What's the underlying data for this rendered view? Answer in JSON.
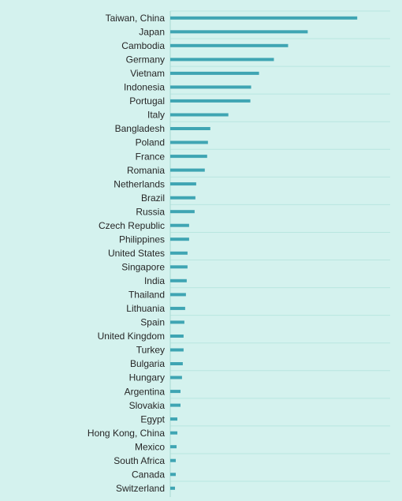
{
  "chart_data": {
    "type": "bar",
    "orientation": "horizontal",
    "categories": [
      "Taiwan, China",
      "Japan",
      "Cambodia",
      "Germany",
      "Vietnam",
      "Indonesia",
      "Portugal",
      "Italy",
      "Bangladesh",
      "Poland",
      "France",
      "Romania",
      "Netherlands",
      "Brazil",
      "Russia",
      "Czech Republic",
      "Philippines",
      "United States",
      "Singapore",
      "India",
      "Thailand",
      "Lithuania",
      "Spain",
      "United Kingdom",
      "Turkey",
      "Bulgaria",
      "Hungary",
      "Argentina",
      "Slovakia",
      "Egypt",
      "Hong Kong, China",
      "Mexico",
      "South Africa",
      "Canada",
      "Switzerland"
    ],
    "values": [
      238,
      175,
      150,
      132,
      113,
      103,
      102,
      74,
      51,
      48,
      47,
      44,
      33,
      32,
      31,
      24,
      24,
      22,
      22,
      21,
      20,
      19,
      18,
      17,
      17,
      16,
      15,
      13,
      13,
      9,
      9,
      8,
      7,
      7,
      6
    ],
    "xlim": [
      0,
      280
    ],
    "grid": true,
    "bar_color": "#3fa5b3",
    "gridline_color": "#b8e6e0",
    "background_color": "#d4f2ee",
    "label_color": "#262626"
  }
}
